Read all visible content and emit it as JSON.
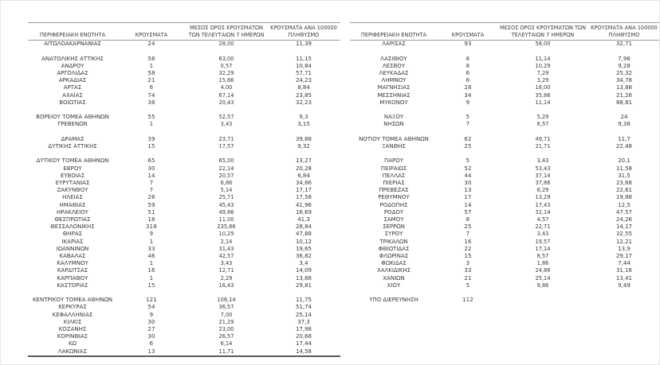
{
  "page": {
    "background": "#ffffff",
    "text_color": "#383838",
    "header_line_color": "#9b9b9b",
    "bottom_line_color": "#5a5a5a",
    "frame_color": "#e6e6e6"
  },
  "left_table": {
    "headers": [
      "ΠΕΡΙΦΕΡΕΙΑΚΗ ΕΝΟΤΗΤΑ",
      "ΚΡΟΥΣΜΑΤΑ",
      "ΜΕΣΟΣ ΟΡΟΣ ΚΡΟΥΣΜΑΤΩΝ ΤΩΝ ΤΕΛΕΥΤΑΙΩΝ 7 ΗΜΕΡΩΝ",
      "ΚΡΟΥΣΜΑΤΑ ΑΝΑ 100000 ΠΛΗΘΥΣΜΟ"
    ],
    "rows": [
      [
        "ΑΙΤΩΛΟΑΚΑΡΝΑΝΙΑΣ",
        "24",
        "28,00",
        "11,39"
      ],
      [
        "",
        "",
        "",
        ""
      ],
      [
        "ΑΝΑΤΟΛΙΚΗΣ ΑΤΤΙΚΗΣ",
        "58",
        "63,00",
        "11,15"
      ],
      [
        "ΑΝΔΡΟΥ",
        "1",
        "0,57",
        "10,84"
      ],
      [
        "ΑΡΓΟΛΙΔΑΣ",
        "58",
        "32,29",
        "57,71"
      ],
      [
        "ΑΡΚΑΔΙΑΣ",
        "21",
        "15,86",
        "24,23"
      ],
      [
        "ΑΡΤΑΣ",
        "6",
        "4,00",
        "8,84"
      ],
      [
        "ΑΧΑΪΑΣ",
        "74",
        "67,14",
        "23,85"
      ],
      [
        "ΒΟΙΩΤΙΑΣ",
        "38",
        "20,43",
        "32,23"
      ],
      [
        "",
        "",
        "",
        ""
      ],
      [
        "ΒΟΡΕΙΟΥ ΤΟΜΕΑ ΑΘΗΝΩΝ",
        "55",
        "52,57",
        "9,3"
      ],
      [
        "ΓΡΕΒΕΝΩΝ",
        "1",
        "3,43",
        "3,15"
      ],
      [
        "",
        "",
        "",
        ""
      ],
      [
        "ΔΡΑΜΑΣ",
        "39",
        "23,71",
        "39,88"
      ],
      [
        "ΔΥΤΙΚΗΣ ΑΤΤΙΚΗΣ",
        "15",
        "17,57",
        "9,32"
      ],
      [
        "",
        "",
        "",
        ""
      ],
      [
        "ΔΥΤΙΚΟΥ ΤΟΜΕΑ ΑΘΗΝΩΝ",
        "65",
        "65,00",
        "13,27"
      ],
      [
        "ΕΒΡΟΥ",
        "30",
        "22,14",
        "20,28"
      ],
      [
        "ΕΥΒΟΙΑΣ",
        "14",
        "20,57",
        "6,84"
      ],
      [
        "ΕΥΡΥΤΑΝΙΑΣ",
        "7",
        "6,86",
        "34,86"
      ],
      [
        "ΖΑΚΥΝΘΟΥ",
        "7",
        "5,14",
        "17,17"
      ],
      [
        "ΗΛΕΙΑΣ",
        "28",
        "25,71",
        "17,58"
      ],
      [
        "ΗΜΑΘΙΑΣ",
        "59",
        "45,43",
        "41,96"
      ],
      [
        "ΗΡΑΚΛΕΙΟΥ",
        "51",
        "49,86",
        "16,69"
      ],
      [
        "ΘΕΣΠΡΩΤΙΑΣ",
        "18",
        "11,00",
        "41,3"
      ],
      [
        "ΘΕΣΣΑΛΟΝΙΚΗΣ",
        "318",
        "235,86",
        "28,84"
      ],
      [
        "ΘΗΡΑΣ",
        "9",
        "10,29",
        "47,88"
      ],
      [
        "ΙΚΑΡΙΑΣ",
        "1",
        "2,14",
        "10,12"
      ],
      [
        "ΙΩΑΝΝΙΝΩΝ",
        "33",
        "31,43",
        "19,65"
      ],
      [
        "ΚΑΒΑΛΑΣ",
        "46",
        "42,57",
        "36,82"
      ],
      [
        "ΚΑΛΥΜΝΟΥ",
        "1",
        "3,43",
        "3,4"
      ],
      [
        "ΚΑΡΔΙΤΣΑΣ",
        "16",
        "12,71",
        "14,09"
      ],
      [
        "ΚΑΡΠΑΘΟΥ",
        "1",
        "2,29",
        "13,88"
      ],
      [
        "ΚΑΣΤΟΡΙΑΣ",
        "15",
        "16,43",
        "29,81"
      ],
      [
        "",
        "",
        "",
        ""
      ],
      [
        "ΚΕΝΤΡΙΚΟΥ ΤΟΜΕΑ ΑΘΗΝΩΝ",
        "121",
        "106,14",
        "11,75"
      ],
      [
        "ΚΕΡΚΥΡΑΣ",
        "54",
        "36,57",
        "51,74"
      ],
      [
        "ΚΕΦΑΛΛΗΝΙΑΣ",
        "9",
        "7,00",
        "25,14"
      ],
      [
        "ΚΙΛΚΙΣ",
        "30",
        "21,29",
        "37,3"
      ],
      [
        "ΚΟΖΑΝΗΣ",
        "27",
        "23,00",
        "17,98"
      ],
      [
        "ΚΟΡΙΝΘΙΑΣ",
        "30",
        "26,57",
        "20,68"
      ],
      [
        "ΚΩ",
        "6",
        "6,14",
        "17,44"
      ],
      [
        "ΛΑΚΩΝΙΑΣ",
        "13",
        "11,71",
        "14,58"
      ]
    ]
  },
  "right_table": {
    "headers": [
      "ΠΕΡΙΦΕΡΕΙΑΚΗ ΕΝΟΤΗΤΑ",
      "ΚΡΟΥΣΜΑΤΑ",
      "ΜΕΣΟΣ ΟΡΟΣ ΚΡΟΥΣΜΑΤΩΝ ΤΩΝ ΤΕΛΕΥΤΑΙΩΝ 7 ΗΜΕΡΩΝ",
      "ΚΡΟΥΣΜΑΤΑ ΑΝΑ 100000 ΠΛΗΘΥΣΜΟ"
    ],
    "rows": [
      [
        "ΛΑΡΙΣΑΣ",
        "93",
        "58,00",
        "32,71"
      ],
      [
        "",
        "",
        "",
        ""
      ],
      [
        "ΛΑΣΙΘΙΟΥ",
        "6",
        "11,14",
        "7,96"
      ],
      [
        "ΛΕΣΒΟΥ",
        "8",
        "10,29",
        "9,28"
      ],
      [
        "ΛΕΥΚΑΔΑΣ",
        "6",
        "7,29",
        "25,32"
      ],
      [
        "ΛΗΜΝΟΥ",
        "6",
        "3,29",
        "34,78"
      ],
      [
        "ΜΑΓΝΗΣΙΑΣ",
        "28",
        "18,00",
        "13,88"
      ],
      [
        "ΜΕΣΣΗΝΙΑΣ",
        "34",
        "35,86",
        "21,26"
      ],
      [
        "ΜΥΚΟΝΟΥ",
        "9",
        "11,14",
        "88,81"
      ],
      [
        "",
        "",
        "",
        ""
      ],
      [
        "ΝΑΞΟΥ",
        "5",
        "5,29",
        "24"
      ],
      [
        "ΝΗΣΩΝ",
        "7",
        "6,57",
        "9,38"
      ],
      [
        "",
        "",
        "",
        ""
      ],
      [
        "ΝΟΤΙΟΥ ΤΟΜΕΑ ΑΘΗΝΩΝ",
        "62",
        "49,71",
        "11,7"
      ],
      [
        "ΞΑΝΘΗΣ",
        "25",
        "21,71",
        "22,48"
      ],
      [
        "",
        "",
        "",
        ""
      ],
      [
        "ΠΑΡΟΥ",
        "5",
        "3,43",
        "20,1"
      ],
      [
        "ΠΕΙΡΑΙΩΣ",
        "52",
        "53,43",
        "11,58"
      ],
      [
        "ΠΕΛΛΑΣ",
        "44",
        "37,14",
        "31,5"
      ],
      [
        "ΠΙΕΡΙΑΣ",
        "30",
        "37,86",
        "23,68"
      ],
      [
        "ΠΡΕΒΕΖΑΣ",
        "13",
        "6,29",
        "22,61"
      ],
      [
        "ΡΕΘΥΜΝΟΥ",
        "17",
        "13,29",
        "19,88"
      ],
      [
        "ΡΟΔΟΠΗΣ",
        "14",
        "17,43",
        "12,5"
      ],
      [
        "ΡΟΔΟΥ",
        "57",
        "32,14",
        "47,57"
      ],
      [
        "ΣΑΜΟΥ",
        "8",
        "4,57",
        "24,26"
      ],
      [
        "ΣΕΡΡΩΝ",
        "25",
        "22,71",
        "14,17"
      ],
      [
        "ΣΥΡΟΥ",
        "7",
        "3,43",
        "32,55"
      ],
      [
        "ΤΡΙΚΑΛΩΝ",
        "16",
        "19,57",
        "12,21"
      ],
      [
        "ΦΘΙΩΤΙΔΑΣ",
        "22",
        "17,14",
        "13,9"
      ],
      [
        "ΦΛΩΡΙΝΑΣ",
        "15",
        "8,57",
        "29,17"
      ],
      [
        "ΦΩΚΙΔΑΣ",
        "3",
        "1,86",
        "7,44"
      ],
      [
        "ΧΑΛΚΙΔΙΚΗΣ",
        "33",
        "24,86",
        "31,16"
      ],
      [
        "ΧΑΝΙΩΝ",
        "21",
        "25,14",
        "13,41"
      ],
      [
        "ΧΙΟΥ",
        "5",
        "9,86",
        "9,49"
      ],
      [
        "",
        "",
        "",
        ""
      ],
      [
        "ΥΠΟ ΔΙΕΡΕΥΝΗΣΗ",
        "112",
        "",
        ""
      ]
    ]
  }
}
